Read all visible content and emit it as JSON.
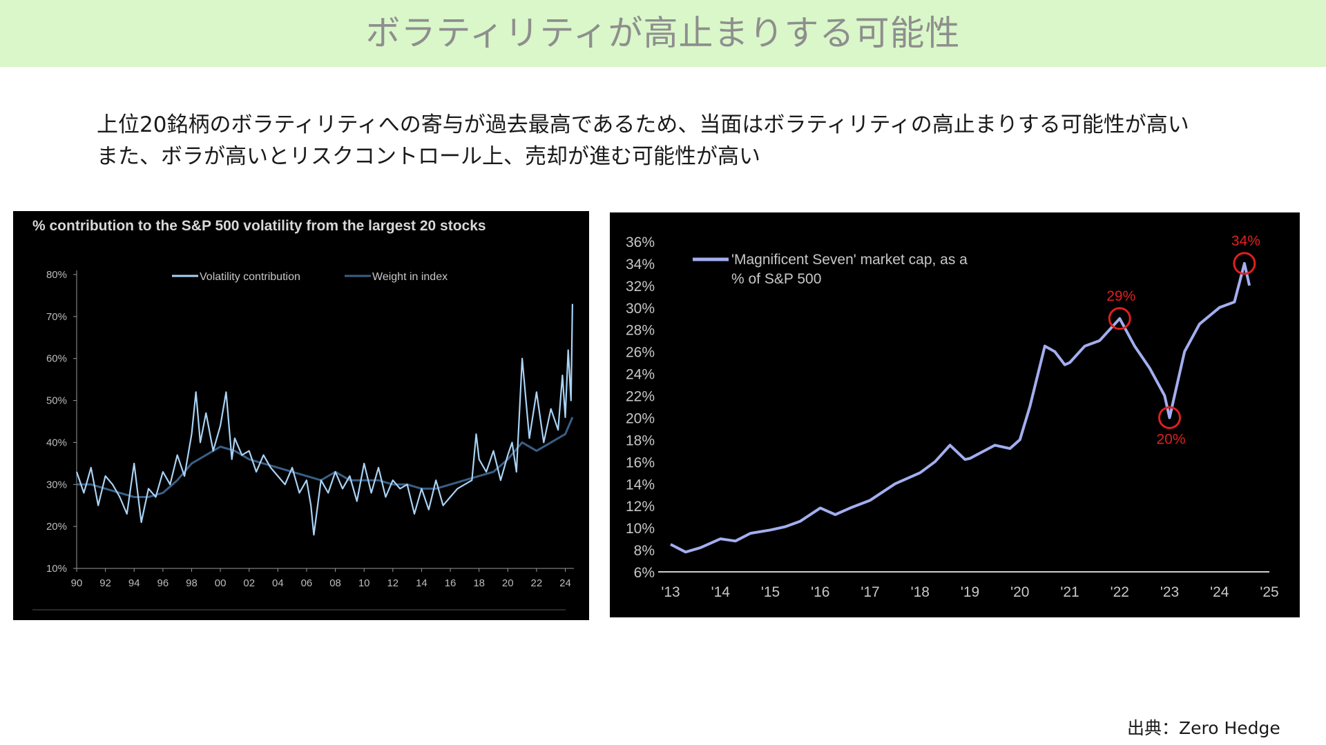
{
  "slide": {
    "title": "ボラティリティが高止まりする可能性",
    "description_lines": [
      "上位20銘柄のボラティリティへの寄与が過去最高であるため、当面はボラティリティの高止まりする可能性が高い",
      "また、ボラが高いとリスクコントロール上、売却が進む可能性が高い"
    ],
    "source": "出典：Zero Hedge"
  },
  "colors": {
    "banner_bg": "#d9f7c8",
    "title_text": "#8e8e8e",
    "chart_bg": "#000000",
    "volatility_line": "#a9d3f5",
    "weight_line": "#3a5f86",
    "mag7_line": "#a3aef0",
    "annotation": "#e02020"
  },
  "chart_data": [
    {
      "type": "line",
      "title": "% contribution to the S&P 500 volatility from the largest 20 stocks",
      "xlabel": "",
      "ylabel": "",
      "xlim": [
        1990,
        2024.6
      ],
      "ylim": [
        10,
        80
      ],
      "x_ticks": [
        "90",
        "92",
        "94",
        "96",
        "98",
        "00",
        "02",
        "04",
        "06",
        "08",
        "10",
        "12",
        "14",
        "16",
        "18",
        "20",
        "22",
        "24"
      ],
      "y_ticks": [
        "10%",
        "20%",
        "30%",
        "40%",
        "50%",
        "60%",
        "70%",
        "80%"
      ],
      "legend_position": "top",
      "grid": false,
      "series": [
        {
          "name": "Volatility contribution",
          "color": "#a9d3f5",
          "x": [
            1990,
            1990.5,
            1991,
            1991.5,
            1992,
            1992.5,
            1993,
            1993.5,
            1994,
            1994.5,
            1995,
            1995.5,
            1996,
            1996.5,
            1997,
            1997.5,
            1998,
            1998.3,
            1998.6,
            1999,
            1999.5,
            2000,
            2000.4,
            2000.8,
            2001,
            2001.5,
            2002,
            2002.5,
            2003,
            2003.5,
            2004,
            2004.5,
            2005,
            2005.5,
            2006,
            2006.3,
            2006.5,
            2007,
            2007.5,
            2008,
            2008.5,
            2009,
            2009.5,
            2010,
            2010.5,
            2011,
            2011.5,
            2012,
            2012.5,
            2013,
            2013.5,
            2014,
            2014.5,
            2015,
            2015.5,
            2016,
            2016.5,
            2017,
            2017.5,
            2017.8,
            2018,
            2018.5,
            2019,
            2019.5,
            2020,
            2020.3,
            2020.6,
            2021,
            2021.5,
            2022,
            2022.5,
            2023,
            2023.5,
            2023.8,
            2024,
            2024.2,
            2024.4,
            2024.5
          ],
          "values": [
            33,
            28,
            34,
            25,
            32,
            30,
            27,
            23,
            35,
            21,
            29,
            27,
            33,
            30,
            37,
            32,
            42,
            52,
            40,
            47,
            38,
            44,
            52,
            36,
            41,
            37,
            38,
            33,
            37,
            34,
            32,
            30,
            34,
            28,
            31,
            25,
            18,
            31,
            28,
            33,
            29,
            32,
            26,
            35,
            28,
            34,
            27,
            31,
            29,
            30,
            23,
            29,
            24,
            31,
            25,
            27,
            29,
            30,
            31,
            42,
            36,
            33,
            38,
            31,
            37,
            40,
            33,
            60,
            41,
            52,
            40,
            48,
            43,
            56,
            46,
            62,
            50,
            73
          ]
        },
        {
          "name": "Weight in index",
          "color": "#3a5f86",
          "x": [
            1990,
            1991,
            1992,
            1993,
            1994,
            1995,
            1996,
            1997,
            1998,
            1999,
            2000,
            2001,
            2002,
            2003,
            2004,
            2005,
            2006,
            2007,
            2008,
            2009,
            2010,
            2011,
            2012,
            2013,
            2014,
            2015,
            2016,
            2017,
            2018,
            2019,
            2020,
            2021,
            2022,
            2023,
            2024,
            2024.5
          ],
          "values": [
            30,
            30,
            29,
            28,
            27,
            27,
            28,
            31,
            35,
            37,
            39,
            38,
            36,
            35,
            34,
            33,
            32,
            31,
            33,
            31,
            31,
            31,
            30,
            30,
            29,
            29,
            30,
            31,
            32,
            33,
            36,
            40,
            38,
            40,
            42,
            46
          ]
        }
      ]
    },
    {
      "type": "line",
      "title": "",
      "xlabel": "",
      "ylabel": "",
      "xlim": [
        2013,
        2025
      ],
      "ylim": [
        6,
        36
      ],
      "x_ticks": [
        "'13",
        "'14",
        "'15",
        "'16",
        "'17",
        "'18",
        "'19",
        "'20",
        "'21",
        "'22",
        "'23",
        "'24",
        "'25"
      ],
      "y_ticks": [
        "6%",
        "8%",
        "10%",
        "12%",
        "14%",
        "16%",
        "18%",
        "20%",
        "22%",
        "24%",
        "26%",
        "28%",
        "30%",
        "32%",
        "34%",
        "36%"
      ],
      "legend_position": "top-left",
      "grid": false,
      "series": [
        {
          "name": "'Magnificent Seven' market cap, as a % of S&P 500",
          "color": "#a3aef0",
          "x": [
            2013,
            2013.3,
            2013.6,
            2014,
            2014.3,
            2014.6,
            2015,
            2015.3,
            2015.6,
            2016,
            2016.3,
            2016.6,
            2017,
            2017.5,
            2018,
            2018.3,
            2018.6,
            2018.9,
            2019,
            2019.5,
            2019.8,
            2020,
            2020.2,
            2020.5,
            2020.7,
            2020.9,
            2021,
            2021.3,
            2021.6,
            2022,
            2022.3,
            2022.6,
            2022.9,
            2023,
            2023.1,
            2023.3,
            2023.6,
            2024,
            2024.3,
            2024.5,
            2024.55,
            2024.6
          ],
          "values": [
            8.5,
            7.8,
            8.2,
            9.0,
            8.8,
            9.5,
            9.8,
            10.1,
            10.6,
            11.8,
            11.2,
            11.8,
            12.5,
            14.0,
            15.0,
            16.0,
            17.5,
            16.2,
            16.3,
            17.5,
            17.2,
            18.0,
            21.0,
            26.5,
            26.0,
            24.8,
            25.0,
            26.5,
            27.0,
            29.0,
            26.5,
            24.5,
            22.0,
            20.0,
            22.0,
            26.0,
            28.5,
            30.0,
            30.5,
            34.0,
            33.0,
            32.0
          ]
        }
      ],
      "annotations": [
        {
          "label": "29%",
          "x": 2022.0,
          "y": 29
        },
        {
          "label": "20%",
          "x": 2023.0,
          "y": 20
        },
        {
          "label": "34%",
          "x": 2024.5,
          "y": 34
        }
      ]
    }
  ]
}
